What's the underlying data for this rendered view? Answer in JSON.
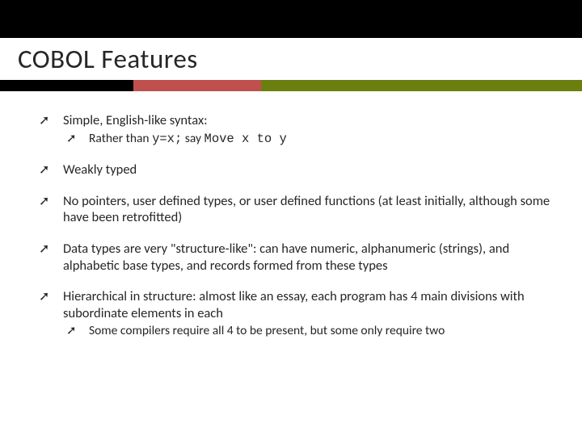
{
  "header": {
    "title": "COBOL Features"
  },
  "accent_colors": {
    "dark": "#000000",
    "red": "#c0504d",
    "green": "#6a7f10"
  },
  "bullets": [
    {
      "text_parts": [
        {
          "t": "Simple, English-like syntax:",
          "mono": false
        }
      ],
      "sub": [
        {
          "text_parts": [
            {
              "t": "Rather than ",
              "mono": false
            },
            {
              "t": "y=x;",
              "mono": true
            },
            {
              "t": " say ",
              "mono": false
            },
            {
              "t": "Move x to y",
              "mono": true
            }
          ]
        }
      ]
    },
    {
      "text_parts": [
        {
          "t": "Weakly typed",
          "mono": false
        }
      ]
    },
    {
      "text_parts": [
        {
          "t": "No pointers, user defined types, or user defined functions (at least initially, although some have been retrofitted)",
          "mono": false
        }
      ]
    },
    {
      "text_parts": [
        {
          "t": "Data types are very \"structure-like\": can have numeric, alphanumeric (strings), and alphabetic base types, and records formed from these types",
          "mono": false
        }
      ]
    },
    {
      "text_parts": [
        {
          "t": "Hierarchical in structure: almost like an essay, each program has 4 main divisions with subordinate elements in each",
          "mono": false
        }
      ],
      "sub": [
        {
          "text_parts": [
            {
              "t": "Some compilers require all 4 to be present, but some only require two",
              "mono": false
            }
          ]
        }
      ]
    }
  ],
  "glyphs": {
    "arrow": "➚"
  }
}
